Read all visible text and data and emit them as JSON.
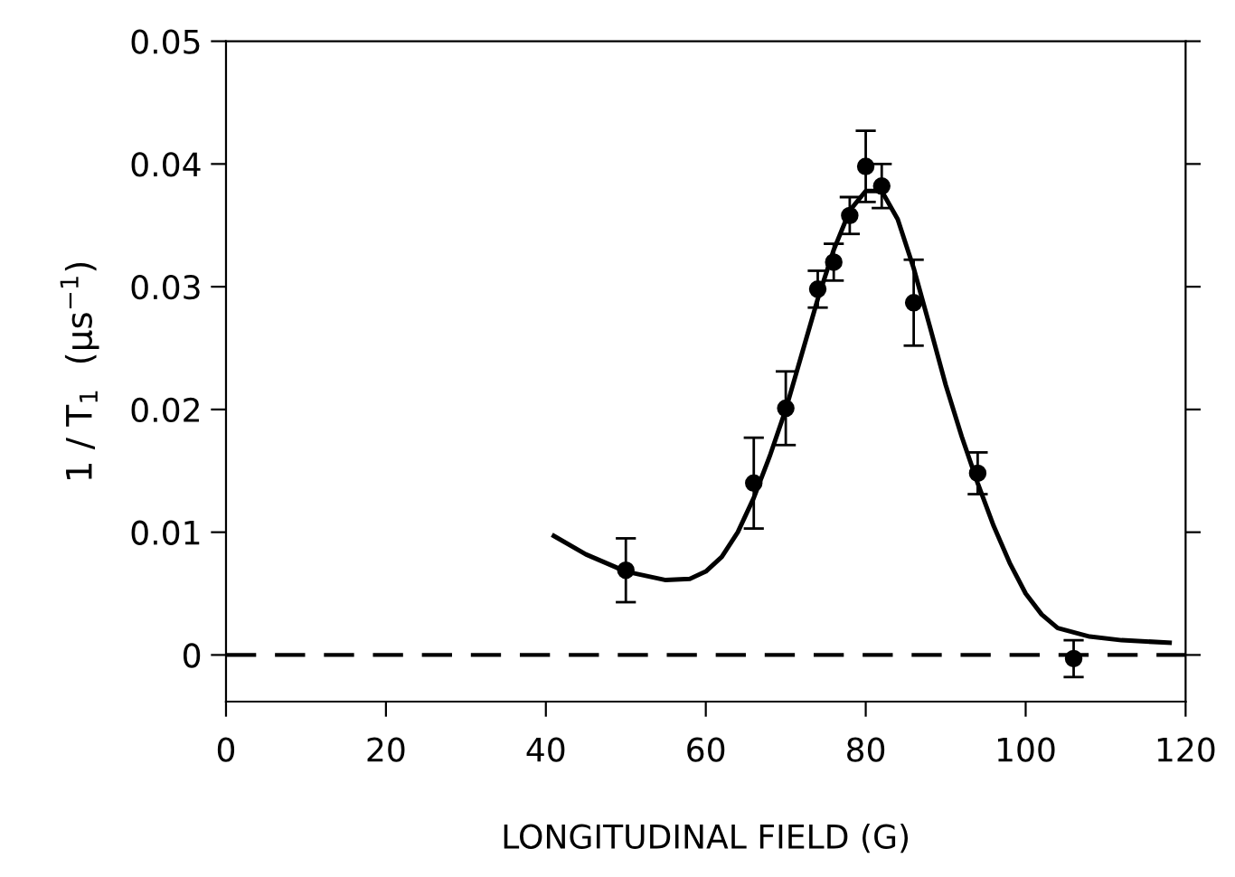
{
  "chart_data": {
    "type": "scatter",
    "xlabel": "LONGITUDINAL FIELD (G)",
    "ylabel": "1 / T$_{1}$  (μs$^{−1}$)",
    "xlim": [
      0,
      120
    ],
    "xticks": [
      0,
      20,
      40,
      60,
      80,
      100,
      120
    ],
    "ylim": [
      -0.0038,
      0.05
    ],
    "yticks": [
      0,
      0.01,
      0.02,
      0.03,
      0.04,
      0.05
    ],
    "grid": false,
    "legend": false,
    "marker": "circle",
    "series": [
      {
        "color": "#000000",
        "x": [
          50,
          66,
          70,
          74,
          76,
          78,
          80,
          82,
          86,
          94,
          106
        ],
        "values": [
          0.0069,
          0.014,
          0.0201,
          0.0298,
          0.032,
          0.0358,
          0.0398,
          0.0382,
          0.0287,
          0.0148,
          -0.0003
        ],
        "errors": [
          0.0026,
          0.0037,
          0.003,
          0.0015,
          0.0015,
          0.0015,
          0.0029,
          0.0018,
          0.0035,
          0.0017,
          0.0015
        ]
      },
      {
        "type": "line",
        "color": "#000000",
        "marker": "none",
        "line_style": "solid",
        "x": [
          41,
          45,
          50,
          55,
          58,
          60,
          62,
          64,
          66,
          68,
          70,
          72,
          74,
          76,
          78,
          80,
          82,
          84,
          86,
          88,
          90,
          92,
          94,
          96,
          98,
          100,
          102,
          104,
          108,
          112,
          118
        ],
        "values": [
          0.0097,
          0.0082,
          0.0068,
          0.0061,
          0.0062,
          0.0068,
          0.008,
          0.01,
          0.0128,
          0.0162,
          0.02,
          0.0245,
          0.029,
          0.033,
          0.0362,
          0.0378,
          0.0378,
          0.0355,
          0.0315,
          0.0268,
          0.022,
          0.0178,
          0.014,
          0.0105,
          0.0075,
          0.005,
          0.0033,
          0.0022,
          0.0015,
          0.0012,
          0.001
        ]
      }
    ],
    "ref_lines": [
      {
        "axis": "y",
        "value": 0,
        "color": "#000000",
        "line_style": "dashed"
      }
    ]
  }
}
